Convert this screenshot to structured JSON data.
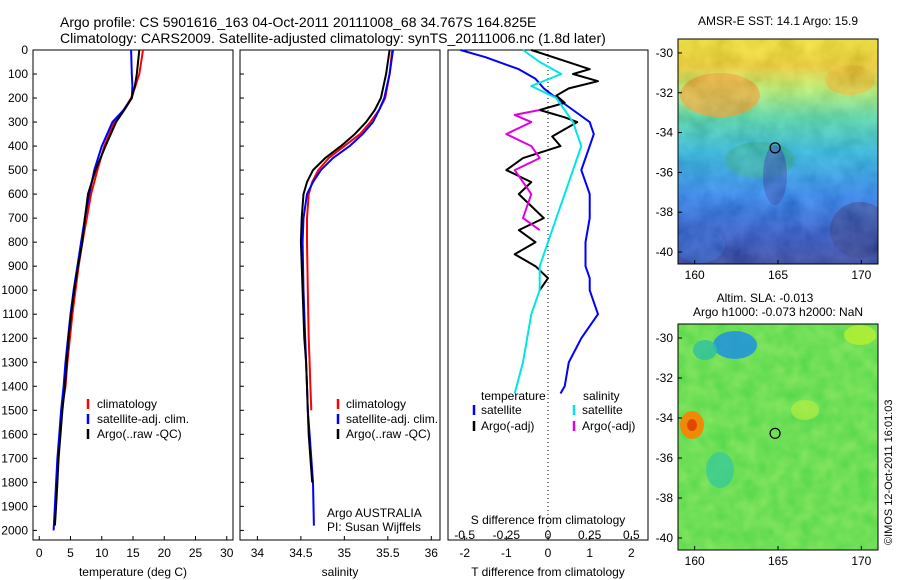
{
  "title_line1": "Argo profile: CS 5901616_163 04-Oct-2011 20111008_68 34.767S 164.825E",
  "title_line2": "Climatology: CARS2009. Satellite-adjusted climatology: synTS_20111006.nc (1.8d later)",
  "credit": "©IMOS 12-Oct-2011 16:01:03",
  "colors": {
    "climatology": "#ff0000",
    "satellite": "#0000ff",
    "argo": "#000000",
    "sal_satellite": "#00e5e5",
    "sal_argo": "#e100e1"
  },
  "chart_data": [
    {
      "id": "temperature",
      "type": "line",
      "xlabel": "temperature (deg C)",
      "xlim": [
        -1,
        31
      ],
      "xticks": [
        "0",
        "5",
        "10",
        "15",
        "20",
        "25",
        "30"
      ],
      "xtick_values": [
        0,
        5,
        10,
        15,
        20,
        25,
        30
      ],
      "ylim": [
        2000,
        0
      ],
      "yticks": [
        "0",
        "100",
        "200",
        "300",
        "400",
        "500",
        "600",
        "700",
        "800",
        "900",
        "1000",
        "1100",
        "1200",
        "1300",
        "1400",
        "1500",
        "1600",
        "1700",
        "1800",
        "1900",
        "2000"
      ],
      "legend": [
        "climatology",
        "satellite-adj. clim.",
        "Argo(..raw -QC)"
      ],
      "series": [
        {
          "key": "climatology",
          "color": "#ff0000",
          "x": [
            16.6,
            16.0,
            15.4,
            14.7,
            13.5,
            12.0,
            10.4,
            9.3,
            8.3,
            7.6,
            6.9,
            6.3,
            5.8,
            5.3,
            4.9,
            4.5,
            4.2,
            3.9,
            3.6
          ],
          "y": [
            0,
            100,
            150,
            200,
            250,
            300,
            400,
            500,
            600,
            700,
            800,
            900,
            1000,
            1100,
            1200,
            1300,
            1400,
            1450,
            1500
          ]
        },
        {
          "key": "satellite",
          "color": "#0000ff",
          "x": [
            14.7,
            14.8,
            14.9,
            14.8,
            13.5,
            11.7,
            10.0,
            8.8,
            8.0,
            7.3,
            6.7,
            6.1,
            5.5,
            5.0,
            4.6,
            4.2,
            3.9,
            3.5,
            3.2,
            2.9,
            2.7,
            2.5,
            2.3
          ],
          "y": [
            0,
            100,
            150,
            200,
            250,
            300,
            400,
            500,
            600,
            700,
            800,
            900,
            1000,
            1100,
            1200,
            1300,
            1400,
            1500,
            1600,
            1700,
            1800,
            1900,
            2000
          ]
        },
        {
          "key": "argo",
          "color": "#000000",
          "x": [
            16.0,
            15.6,
            15.3,
            14.8,
            13.6,
            12.3,
            10.6,
            9.0,
            7.8,
            7.3,
            6.9,
            6.2,
            5.6,
            5.1,
            4.7,
            4.4,
            4.1,
            3.7,
            3.4,
            3.1,
            2.9,
            2.7,
            2.5
          ],
          "y": [
            0,
            100,
            150,
            200,
            250,
            300,
            400,
            500,
            600,
            700,
            800,
            900,
            1000,
            1100,
            1200,
            1300,
            1400,
            1500,
            1600,
            1700,
            1800,
            1900,
            1980
          ]
        }
      ]
    },
    {
      "id": "salinity",
      "type": "line",
      "xlabel": "salinity",
      "xlim": [
        33.8,
        36.1
      ],
      "xticks": [
        "34",
        "34.5",
        "35",
        "35.5",
        "36"
      ],
      "xtick_values": [
        34,
        34.5,
        35,
        35.5,
        36
      ],
      "ylim": [
        2000,
        0
      ],
      "legend": [
        "climatology",
        "satellite-adj. clim.",
        "Argo(..raw -QC)"
      ],
      "annotations": [
        "Argo AUSTRALIA",
        "PI: Susan Wijffels"
      ],
      "series": [
        {
          "key": "climatology",
          "color": "#ff0000",
          "x": [
            35.55,
            35.52,
            35.47,
            35.4,
            35.3,
            35.18,
            35.0,
            34.82,
            34.7,
            34.63,
            34.59,
            34.57,
            34.57,
            34.58,
            34.59,
            34.6,
            34.61,
            34.62
          ],
          "y": [
            0,
            100,
            200,
            250,
            300,
            350,
            400,
            450,
            500,
            550,
            600,
            700,
            800,
            1000,
            1200,
            1300,
            1400,
            1500
          ]
        },
        {
          "key": "satellite",
          "color": "#0000ff",
          "x": [
            35.56,
            35.52,
            35.46,
            35.4,
            35.33,
            35.21,
            35.06,
            34.87,
            34.73,
            34.64,
            34.57,
            34.53,
            34.52,
            34.53,
            34.55,
            34.56,
            34.57,
            34.58,
            34.6,
            34.62,
            34.64,
            34.65
          ],
          "y": [
            0,
            100,
            200,
            250,
            300,
            350,
            400,
            450,
            500,
            550,
            600,
            700,
            800,
            1000,
            1200,
            1300,
            1400,
            1500,
            1600,
            1700,
            1800,
            1980
          ]
        },
        {
          "key": "argo",
          "color": "#000000",
          "x": [
            35.52,
            35.48,
            35.42,
            35.35,
            35.25,
            35.12,
            34.96,
            34.78,
            34.64,
            34.57,
            34.53,
            34.51,
            34.5,
            34.52,
            34.54,
            34.56,
            34.57,
            34.58,
            34.59,
            34.61,
            34.63
          ],
          "y": [
            0,
            100,
            200,
            250,
            300,
            350,
            400,
            450,
            500,
            550,
            600,
            700,
            800,
            1000,
            1200,
            1300,
            1400,
            1500,
            1600,
            1700,
            1800
          ]
        }
      ]
    },
    {
      "id": "difference",
      "type": "line",
      "xlabel_top": "S difference from climatology",
      "xlabel": "T difference from climatology",
      "xlim": [
        -2.4,
        2.4
      ],
      "xticks": [
        "-2",
        "-1",
        "0",
        "1",
        "2"
      ],
      "xtick_values": [
        -2,
        -1,
        0,
        1,
        2
      ],
      "xticks_top": [
        "-0.5",
        "-0.25",
        "0",
        "0.25",
        "0.5"
      ],
      "xtick_top_values": [
        -0.5,
        -0.25,
        0,
        0.25,
        0.5
      ],
      "ylim": [
        1600,
        0
      ],
      "legend_left_title": "temperature",
      "legend_right_title": "salinity",
      "legend_left": [
        "satellite",
        "Argo(-adj)"
      ],
      "legend_right": [
        "satellite",
        "Argo(-adj)"
      ],
      "series": [
        {
          "key": "temp_satellite",
          "color": "#0000ff",
          "x": [
            -2.1,
            -1.5,
            -0.7,
            -0.3,
            -0.1,
            0.2,
            0.6,
            1.0,
            1.1,
            1.0,
            0.9,
            0.8,
            0.9,
            1.0,
            1.0,
            0.9,
            0.9,
            1.0,
            1.0,
            1.1,
            1.2,
            0.8,
            0.5,
            0.4,
            0.3
          ],
          "y": [
            0,
            30,
            80,
            120,
            160,
            200,
            250,
            300,
            350,
            400,
            450,
            500,
            550,
            600,
            700,
            800,
            900,
            950,
            1000,
            1050,
            1100,
            1200,
            1300,
            1400,
            1430
          ]
        },
        {
          "key": "temp_argo",
          "color": "#000000",
          "x": [
            -0.4,
            0.3,
            1.0,
            0.6,
            1.2,
            0.5,
            0.2,
            0.4,
            -0.2,
            0.4,
            0.7,
            0.4,
            0.1,
            0.3,
            -0.6,
            -1.0,
            -0.4,
            -0.7,
            -0.4,
            -0.1,
            -0.7,
            -0.3,
            -0.8,
            -0.3,
            0.0,
            -0.2
          ],
          "y": [
            0,
            40,
            80,
            100,
            130,
            160,
            190,
            220,
            250,
            280,
            300,
            330,
            360,
            400,
            450,
            500,
            550,
            600,
            650,
            700,
            750,
            800,
            850,
            900,
            950,
            1000
          ]
        },
        {
          "key": "sal_satellite",
          "color": "#00e5e5",
          "x": [
            -0.15,
            -0.05,
            0.08,
            -0.1,
            0.05,
            0.15,
            0.2,
            0.15,
            0.1,
            0.05,
            0.0,
            -0.05,
            -0.05,
            -0.1,
            -0.15,
            -0.2
          ],
          "y": [
            0,
            50,
            100,
            150,
            200,
            300,
            400,
            500,
            600,
            700,
            800,
            900,
            1000,
            1100,
            1300,
            1430
          ]
        },
        {
          "key": "sal_argo",
          "color": "#e100e1",
          "x": [
            -0.05,
            -0.2,
            -0.1,
            -0.25,
            -0.1,
            -0.05,
            -0.2,
            -0.15,
            -0.1,
            -0.15,
            -0.05
          ],
          "y": [
            250,
            270,
            300,
            350,
            400,
            450,
            500,
            550,
            600,
            700,
            750
          ]
        }
      ]
    },
    {
      "id": "sst_map",
      "type": "heatmap",
      "title": "AMSR-E SST: 14.1  Argo: 15.9",
      "xticks": [
        "160",
        "165",
        "170"
      ],
      "xtick_values": [
        160,
        165,
        170
      ],
      "yticks": [
        "-30",
        "-32",
        "-34",
        "-36",
        "-38",
        "-40"
      ],
      "ytick_values": [
        -30,
        -32,
        -34,
        -36,
        -38,
        -40
      ],
      "xlim": [
        159,
        171
      ],
      "ylim": [
        -40.6,
        -29.3
      ],
      "marker": {
        "lon": 164.825,
        "lat": -34.767
      }
    },
    {
      "id": "sla_map",
      "type": "heatmap",
      "title_line1": "Altim. SLA: -0.013",
      "title_line2": "Argo h1000: -0.073 h2000: NaN",
      "xticks": [
        "160",
        "165",
        "170"
      ],
      "xtick_values": [
        160,
        165,
        170
      ],
      "yticks": [
        "-30",
        "-32",
        "-34",
        "-36",
        "-38",
        "-40"
      ],
      "ytick_values": [
        -30,
        -32,
        -34,
        -36,
        -38,
        -40
      ],
      "xlim": [
        159,
        171
      ],
      "ylim": [
        -40.6,
        -29.3
      ],
      "marker": {
        "lon": 164.825,
        "lat": -34.767
      }
    }
  ]
}
